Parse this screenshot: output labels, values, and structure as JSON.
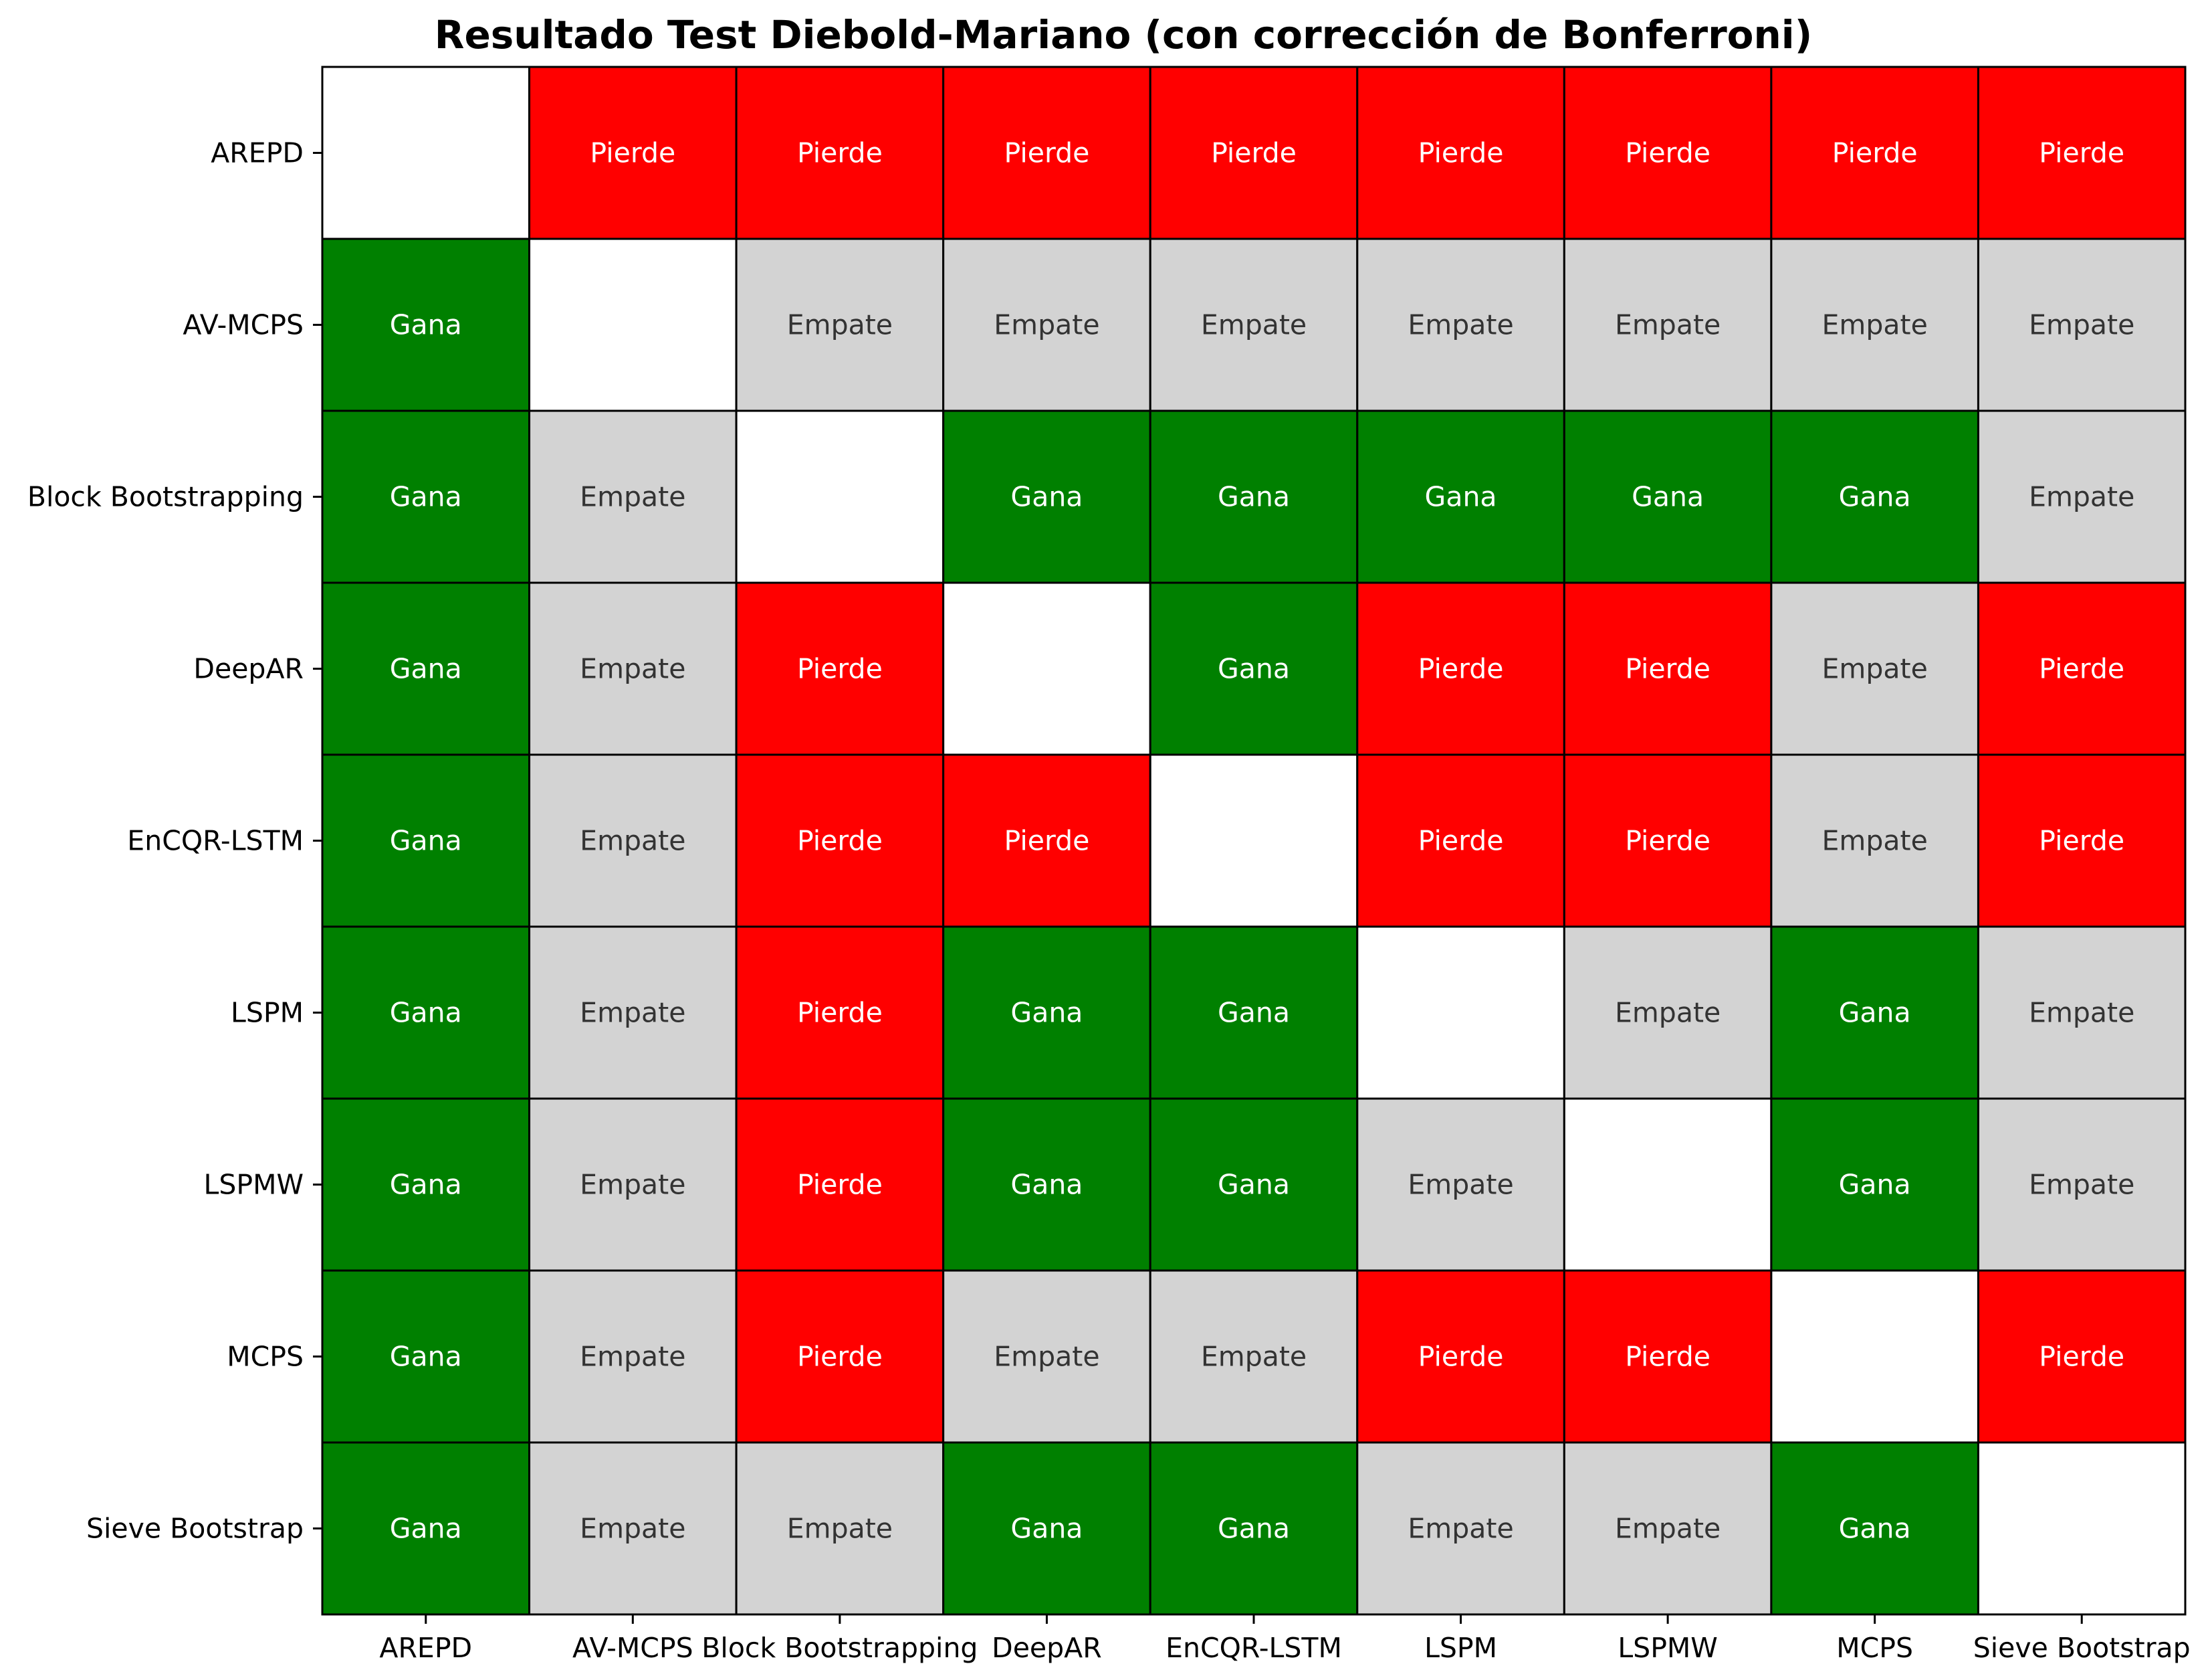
{
  "chart_data": {
    "type": "heatmap",
    "title": "Resultado Test Diebold-Mariano (con corrección de Bonferroni)",
    "xlabel": "",
    "ylabel": "",
    "rows": [
      "AREPD",
      "AV-MCPS",
      "Block Bootstrapping",
      "DeepAR",
      "EnCQR-LSTM",
      "LSPM",
      "LSPMW",
      "MCPS",
      "Sieve Bootstrap"
    ],
    "columns": [
      "AREPD",
      "AV-MCPS",
      "Block Bootstrapping",
      "DeepAR",
      "EnCQR-LSTM",
      "LSPM",
      "LSPMW",
      "MCPS",
      "Sieve Bootstrap"
    ],
    "values": [
      [
        "",
        "Pierde",
        "Pierde",
        "Pierde",
        "Pierde",
        "Pierde",
        "Pierde",
        "Pierde",
        "Pierde"
      ],
      [
        "Gana",
        "",
        "Empate",
        "Empate",
        "Empate",
        "Empate",
        "Empate",
        "Empate",
        "Empate"
      ],
      [
        "Gana",
        "Empate",
        "",
        "Gana",
        "Gana",
        "Gana",
        "Gana",
        "Gana",
        "Empate"
      ],
      [
        "Gana",
        "Empate",
        "Pierde",
        "",
        "Gana",
        "Pierde",
        "Pierde",
        "Empate",
        "Pierde"
      ],
      [
        "Gana",
        "Empate",
        "Pierde",
        "Pierde",
        "",
        "Pierde",
        "Pierde",
        "Empate",
        "Pierde"
      ],
      [
        "Gana",
        "Empate",
        "Pierde",
        "Gana",
        "Gana",
        "",
        "Empate",
        "Gana",
        "Empate"
      ],
      [
        "Gana",
        "Empate",
        "Pierde",
        "Gana",
        "Gana",
        "Empate",
        "",
        "Gana",
        "Empate"
      ],
      [
        "Gana",
        "Empate",
        "Pierde",
        "Empate",
        "Empate",
        "Pierde",
        "Pierde",
        "",
        "Pierde"
      ],
      [
        "Gana",
        "Empate",
        "Empate",
        "Gana",
        "Gana",
        "Empate",
        "Empate",
        "Gana",
        ""
      ]
    ],
    "colors": {
      "Gana": "#008000",
      "Pierde": "#ff0000",
      "Empate": "#d3d3d3",
      "": "#ffffff"
    },
    "text_colors": {
      "Gana": "#ffffff",
      "Pierde": "#ffffff",
      "Empate": "#333333"
    },
    "grid": true,
    "legend": "none"
  }
}
